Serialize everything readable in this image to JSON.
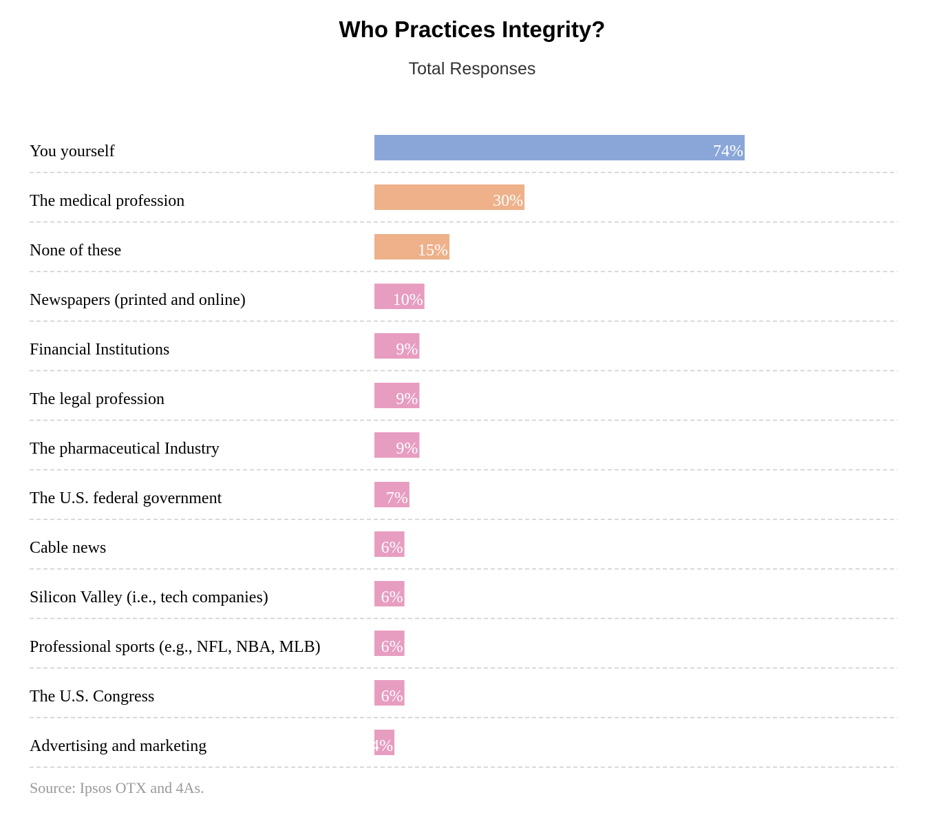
{
  "chart_data": {
    "type": "bar",
    "orientation": "horizontal",
    "title": "Who Practices Integrity?",
    "subtitle": "Total Responses",
    "categories": [
      "You yourself",
      "The medical profession",
      "None of these",
      "Newspapers (printed and online)",
      "Financial Institutions",
      "The legal profession",
      "The pharmaceutical Industry",
      "The U.S. federal government",
      "Cable news",
      "Silicon Valley (i.e., tech companies)",
      "Professional sports (e.g., NFL, NBA, MLB)",
      "The U.S. Congress",
      "Advertising and marketing"
    ],
    "values": [
      74,
      30,
      15,
      10,
      9,
      9,
      9,
      7,
      6,
      6,
      6,
      6,
      4
    ],
    "value_labels": [
      "74%",
      "30%",
      "15%",
      "10%",
      "9%",
      "9%",
      "9%",
      "7%",
      "6%",
      "6%",
      "6%",
      "6%",
      "4%"
    ],
    "colors": [
      "#8aa6d8",
      "#eeb18a",
      "#eeb18a",
      "#e79dc0",
      "#e79dc0",
      "#e79dc0",
      "#e79dc0",
      "#e79dc0",
      "#e79dc0",
      "#e79dc0",
      "#e79dc0",
      "#e79dc0",
      "#e79dc0"
    ],
    "xlim": [
      0,
      100
    ],
    "grid": false,
    "legend": "none",
    "source": "Source: Ipsos OTX and 4As."
  }
}
